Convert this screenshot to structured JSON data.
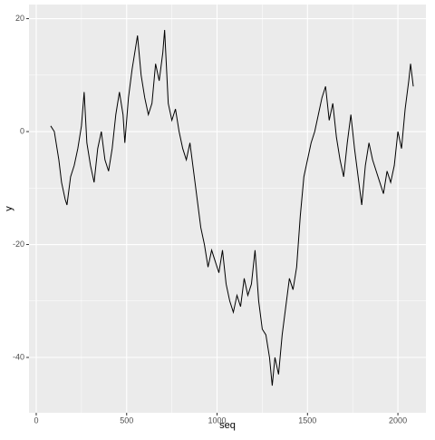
{
  "chart_data": {
    "type": "line",
    "x_label": "seq",
    "y_label": "y",
    "x": [
      80,
      100,
      125,
      140,
      160,
      170,
      190,
      210,
      230,
      250,
      265,
      280,
      300,
      320,
      340,
      360,
      380,
      400,
      420,
      440,
      460,
      480,
      490,
      510,
      530,
      560,
      580,
      600,
      620,
      640,
      660,
      680,
      700,
      710,
      730,
      750,
      770,
      790,
      810,
      830,
      850,
      870,
      890,
      910,
      930,
      950,
      970,
      990,
      1010,
      1030,
      1050,
      1070,
      1090,
      1110,
      1130,
      1150,
      1170,
      1190,
      1210,
      1230,
      1250,
      1270,
      1290,
      1305,
      1320,
      1340,
      1360,
      1380,
      1400,
      1420,
      1440,
      1460,
      1480,
      1500,
      1520,
      1540,
      1560,
      1580,
      1600,
      1620,
      1640,
      1660,
      1680,
      1700,
      1720,
      1740,
      1760,
      1780,
      1800,
      1820,
      1840,
      1860,
      1880,
      1900,
      1920,
      1940,
      1960,
      1980,
      2000,
      2020,
      2040,
      2060,
      2070,
      2085
    ],
    "series": [
      {
        "color": "#000000",
        "values": [
          1,
          0,
          -5,
          -9,
          -12,
          -13,
          -8,
          -6,
          -3,
          1,
          7,
          -2,
          -6,
          -9,
          -3,
          0,
          -5,
          -7,
          -3,
          3,
          7,
          3,
          -2,
          6,
          11,
          17,
          10,
          6,
          3,
          5,
          12,
          9,
          14,
          18,
          5,
          2,
          4,
          0,
          -3,
          -5,
          -2,
          -7,
          -12,
          -17,
          -20,
          -24,
          -21,
          -23,
          -25,
          -21,
          -27,
          -30,
          -32,
          -29,
          -31,
          -26,
          -29,
          -27,
          -21,
          -30,
          -35,
          -36,
          -40,
          -45,
          -40,
          -43,
          -36,
          -31,
          -26,
          -28,
          -24,
          -15,
          -8,
          -5,
          -2,
          0,
          3,
          6,
          8,
          2,
          5,
          -1,
          -5,
          -8,
          -2,
          3,
          -3,
          -8,
          -13,
          -6,
          -2,
          -5,
          -7,
          -9,
          -11,
          -7,
          -9,
          -6,
          0,
          -3,
          4,
          9,
          12,
          8
        ]
      }
    ],
    "xlim": [
      -40,
      2155
    ],
    "ylim": [
      -49.8,
      22.5
    ],
    "xticks": [
      0,
      500,
      1000,
      1500,
      2000
    ],
    "yticks": [
      -40,
      -20,
      0,
      20
    ],
    "x_minor_ticks": [
      250,
      750,
      1250,
      1750
    ],
    "y_minor_ticks": [
      -30,
      -10,
      10
    ],
    "grid": true,
    "background": "#ebebeb"
  }
}
